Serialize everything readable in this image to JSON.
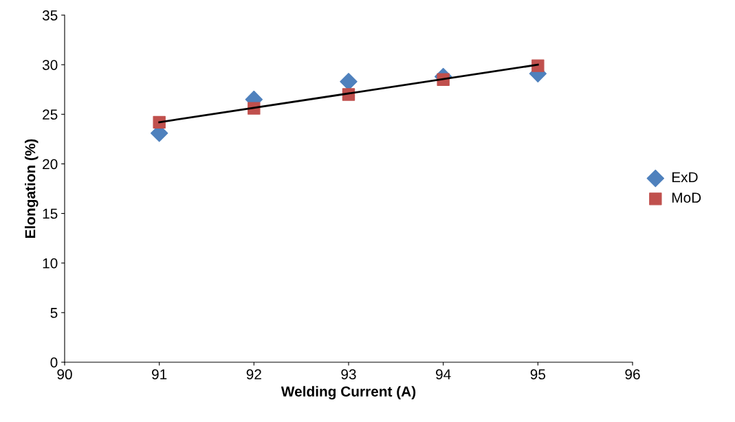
{
  "chart_data": {
    "type": "scatter",
    "xlabel": "Welding Current (A)",
    "ylabel": "Elongation (%)",
    "x": [
      91,
      92,
      93,
      94,
      95
    ],
    "series": [
      {
        "name": "ExD",
        "color": "#4f81bd",
        "marker": "diamond",
        "values": [
          23.1,
          26.5,
          28.3,
          28.8,
          29.1
        ]
      },
      {
        "name": "MoD",
        "color": "#c0504d",
        "marker": "square",
        "values": [
          24.2,
          25.6,
          27.0,
          28.5,
          29.9
        ]
      },
      {
        "type": "line",
        "color": "#000000",
        "x": [
          91,
          95
        ],
        "values": [
          24.2,
          30.0
        ],
        "marker": "none"
      }
    ],
    "xlim": [
      90,
      96
    ],
    "xticks": [
      90,
      91,
      92,
      93,
      94,
      95,
      96
    ],
    "ylim": [
      0,
      35
    ],
    "yticks": [
      0,
      5,
      10,
      15,
      20,
      25,
      30,
      35
    ],
    "grid": false,
    "legend": "right"
  }
}
